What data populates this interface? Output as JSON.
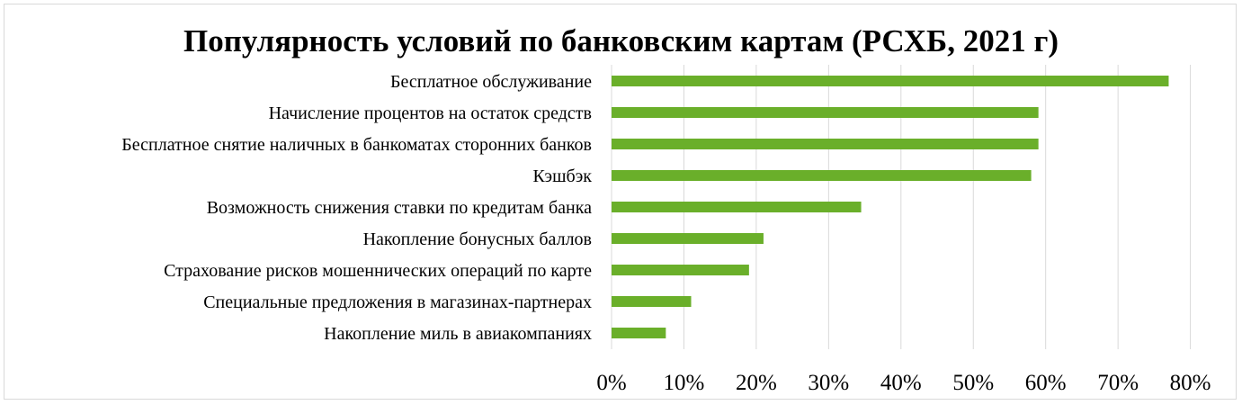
{
  "chart_data": {
    "type": "bar",
    "orientation": "horizontal",
    "title": "Популярность условий по банковским картам (РСХБ, 2021 г)",
    "categories": [
      "Бесплатное обслуживание",
      "Начисление процентов на остаток средств",
      "Бесплатное снятие наличных в банкоматах сторонних банков",
      "Кэшбэк",
      "Возможность снижения ставки по кредитам банка",
      "Накопление бонусных баллов",
      "Страхование рисков мошеннических операций по карте",
      "Специальные предложения в магазинах-партнерах",
      "Накопление миль в авиакомпаниях"
    ],
    "values": [
      77,
      59,
      59,
      58,
      34.5,
      21,
      19,
      11,
      7.5
    ],
    "x_ticks": [
      "0%",
      "10%",
      "20%",
      "30%",
      "40%",
      "50%",
      "60%",
      "70%",
      "80%"
    ],
    "xlim": [
      0,
      80
    ],
    "unit": "%",
    "grid": "vertical",
    "bar_color": "#6aaf2a",
    "grid_color": "#d9d9d9"
  }
}
